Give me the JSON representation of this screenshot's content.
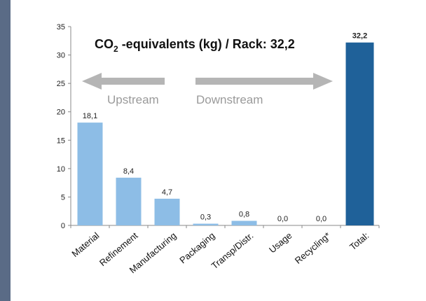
{
  "chart_data": {
    "type": "bar",
    "title_main": "CO",
    "title_sub": "2",
    "title_rest": " -equivalents (kg) / Rack: 32,2",
    "categories": [
      "Material",
      "Refinement",
      "Manufacturing",
      "Packaging",
      "Transp/Distr.",
      "Usage",
      "Recycling*",
      "Total:"
    ],
    "values": [
      18.1,
      8.4,
      4.7,
      0.3,
      0.8,
      0.0,
      0.0,
      32.2
    ],
    "value_labels": [
      "18,1",
      "8,4",
      "4,7",
      "0,3",
      "0,8",
      "0,0",
      "0,0",
      "32,2"
    ],
    "ylim": [
      0,
      35
    ],
    "yticks": [
      0,
      5,
      10,
      15,
      20,
      25,
      30,
      35
    ],
    "grid": false,
    "legend": "none",
    "colors": {
      "bar": "#8dbde6",
      "total_bar": "#1f6199",
      "arrow": "#b5b5b5",
      "arrow_text": "#9a9a9a"
    },
    "annotations": {
      "upstream": "Upstream",
      "downstream": "Downstream"
    }
  }
}
